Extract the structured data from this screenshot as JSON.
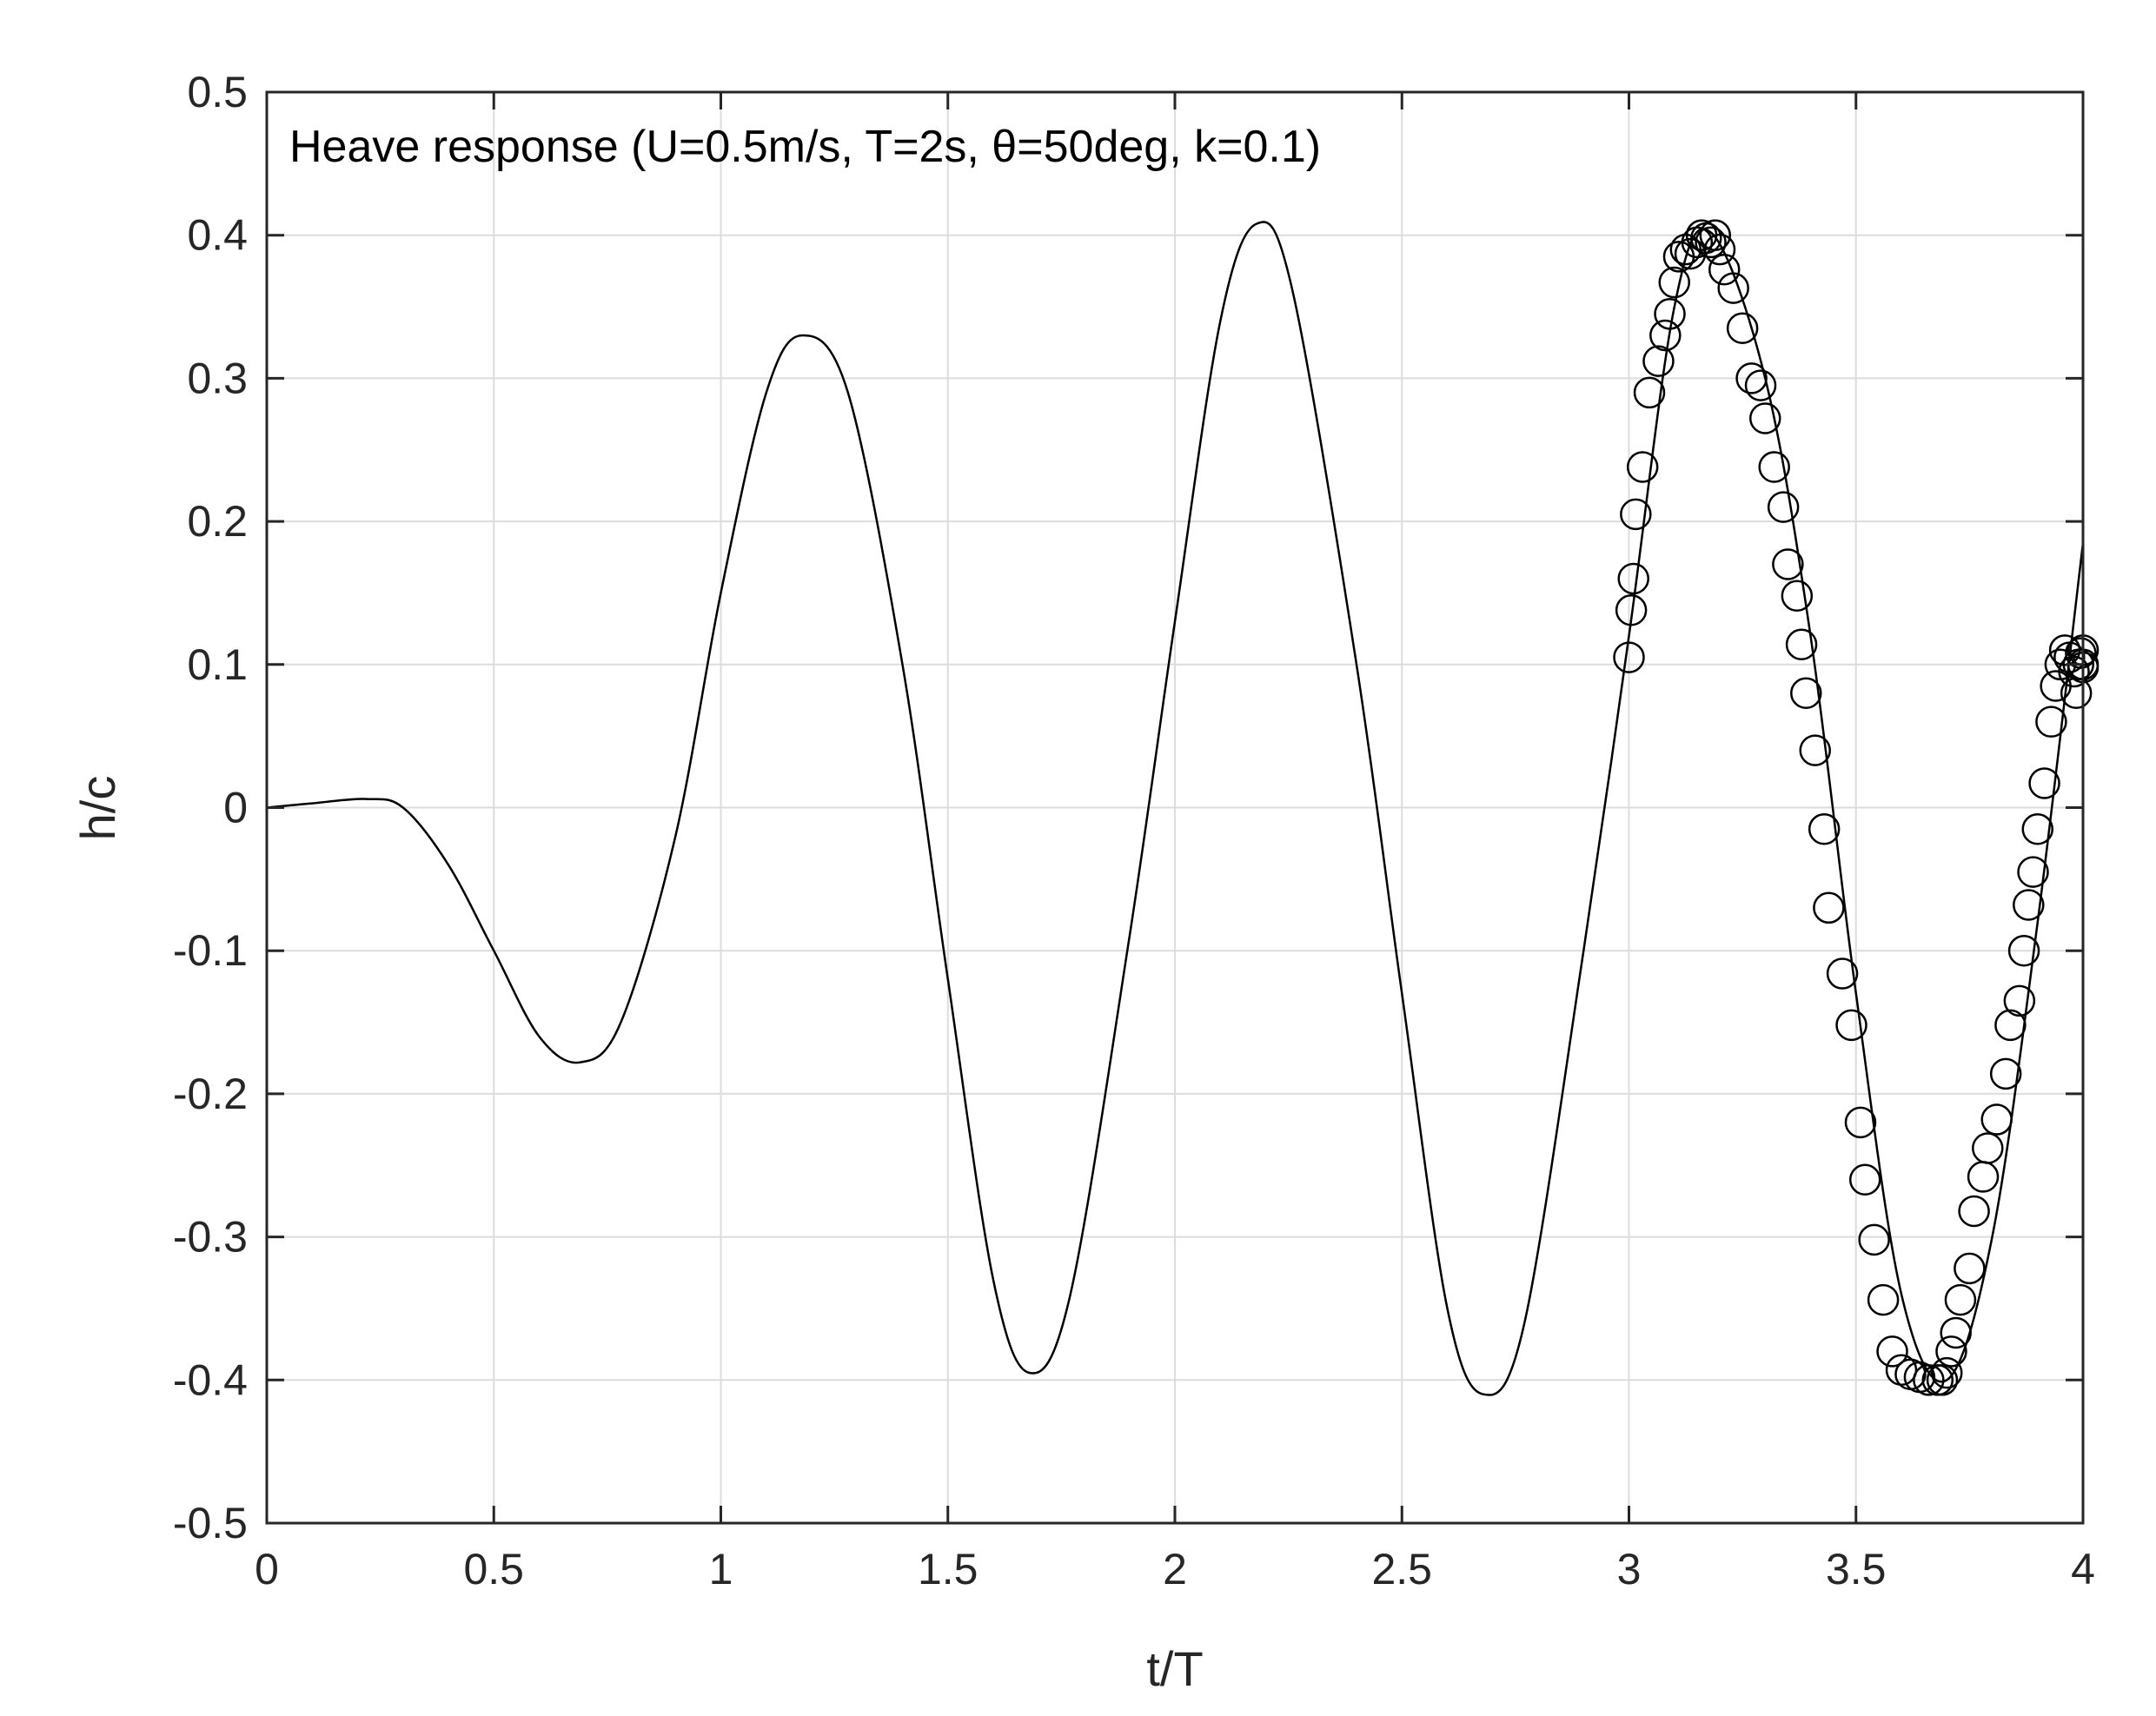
{
  "chart_data": {
    "type": "line",
    "annotation": "Heave response (U=0.5m/s, T=2s, θ=50deg, k=0.1)",
    "xlabel": "t/T",
    "ylabel": "h/c",
    "xlim": [
      0,
      4
    ],
    "ylim": [
      -0.5,
      0.5
    ],
    "xticks": [
      0,
      0.5,
      1,
      1.5,
      2,
      2.5,
      3,
      3.5,
      4
    ],
    "xtick_labels": [
      "0",
      "0.5",
      "1",
      "1.5",
      "2",
      "2.5",
      "3",
      "3.5",
      "4"
    ],
    "yticks": [
      -0.5,
      -0.4,
      -0.3,
      -0.2,
      -0.1,
      0,
      0.1,
      0.2,
      0.3,
      0.4,
      0.5
    ],
    "ytick_labels": [
      "-0.5",
      "-0.4",
      "-0.3",
      "-0.2",
      "-0.1",
      "0",
      "0.1",
      "0.2",
      "0.3",
      "0.4",
      "0.5"
    ],
    "grid": true,
    "colors": {
      "line": "#000000",
      "grid": "#dcdcdc",
      "axes": "#262626"
    },
    "series": [
      {
        "style": "line",
        "x": [
          0,
          0.1,
          0.22,
          0.3,
          0.4,
          0.5,
          0.6,
          0.69,
          0.78,
          0.9,
          1.0,
          1.1,
          1.18,
          1.28,
          1.4,
          1.5,
          1.6,
          1.68,
          1.77,
          1.9,
          2.0,
          2.1,
          2.18,
          2.26,
          2.4,
          2.5,
          2.6,
          2.68,
          2.77,
          2.9,
          3.0,
          3.1,
          3.18,
          3.3,
          3.4,
          3.5,
          3.6,
          3.7,
          3.8,
          3.9,
          4.0
        ],
        "y": [
          0,
          0.003,
          0.006,
          0.0,
          -0.04,
          -0.1,
          -0.16,
          -0.178,
          -0.15,
          -0.02,
          0.15,
          0.29,
          0.33,
          0.29,
          0.1,
          -0.12,
          -0.33,
          -0.395,
          -0.34,
          -0.09,
          0.13,
          0.34,
          0.408,
          0.36,
          0.1,
          -0.13,
          -0.35,
          -0.41,
          -0.36,
          -0.1,
          0.12,
          0.35,
          0.402,
          0.3,
          0.12,
          -0.13,
          -0.34,
          -0.4,
          -0.3,
          -0.08,
          0.185
        ]
      },
      {
        "style": "markers",
        "marker": "circle",
        "x": [
          3.0,
          3.005,
          3.01,
          3.015,
          3.03,
          3.045,
          3.065,
          3.08,
          3.09,
          3.1,
          3.11,
          3.125,
          3.135,
          3.15,
          3.16,
          3.17,
          3.18,
          3.19,
          3.2,
          3.21,
          3.23,
          3.25,
          3.27,
          3.29,
          3.3,
          3.32,
          3.34,
          3.35,
          3.37,
          3.38,
          3.39,
          3.41,
          3.43,
          3.44,
          3.47,
          3.49,
          3.51,
          3.52,
          3.54,
          3.56,
          3.58,
          3.6,
          3.62,
          3.64,
          3.66,
          3.68,
          3.69,
          3.7,
          3.71,
          3.72,
          3.73,
          3.75,
          3.76,
          3.78,
          3.79,
          3.81,
          3.83,
          3.84,
          3.86,
          3.87,
          3.88,
          3.89,
          3.9,
          3.915,
          3.93,
          3.94,
          3.95,
          3.96,
          3.97,
          3.98,
          3.985,
          3.99,
          3.995,
          4.0,
          4.0,
          4.0
        ],
        "y": [
          0.105,
          0.138,
          0.16,
          0.205,
          0.238,
          0.29,
          0.312,
          0.33,
          0.345,
          0.367,
          0.385,
          0.39,
          0.387,
          0.395,
          0.4,
          0.398,
          0.395,
          0.4,
          0.39,
          0.376,
          0.363,
          0.335,
          0.3,
          0.295,
          0.272,
          0.238,
          0.21,
          0.17,
          0.148,
          0.114,
          0.08,
          0.04,
          -0.015,
          -0.07,
          -0.116,
          -0.152,
          -0.22,
          -0.26,
          -0.302,
          -0.344,
          -0.38,
          -0.393,
          -0.396,
          -0.398,
          -0.4,
          -0.4,
          -0.4,
          -0.395,
          -0.38,
          -0.367,
          -0.344,
          -0.322,
          -0.282,
          -0.258,
          -0.238,
          -0.218,
          -0.186,
          -0.152,
          -0.135,
          -0.1,
          -0.068,
          -0.045,
          -0.015,
          0.017,
          0.06,
          0.085,
          0.1,
          0.11,
          0.105,
          0.095,
          0.08,
          0.1,
          0.108,
          0.11,
          0.1,
          0.098
        ]
      }
    ]
  }
}
